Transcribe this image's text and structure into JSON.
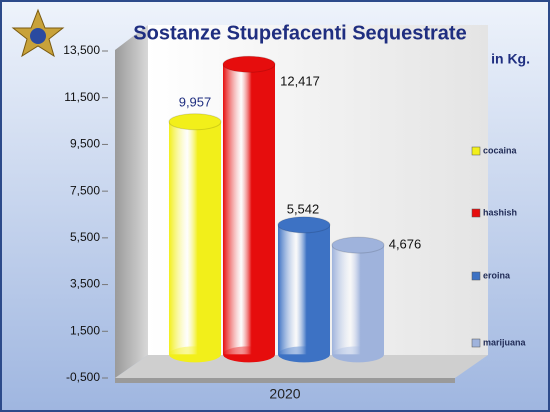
{
  "chart_data": {
    "type": "bar3d",
    "title": "Sostanze   Stupefacenti   Sequestrate",
    "subtitle": "in Kg.",
    "categories": [
      "2020"
    ],
    "series": [
      {
        "name": "cocaina",
        "color": "#f2ef1a",
        "values": [
          9957
        ],
        "value_labels": [
          "9,957"
        ]
      },
      {
        "name": "hashish",
        "color": "#e60d0d",
        "values": [
          12417
        ],
        "value_labels": [
          "12,417"
        ]
      },
      {
        "name": "eroina",
        "color": "#3d72c4",
        "values": [
          5542
        ],
        "value_labels": [
          "5,542"
        ]
      },
      {
        "name": "marijuana",
        "color": "#9fb3dc",
        "values": [
          4676
        ],
        "value_labels": [
          "4,676"
        ]
      }
    ],
    "ylim": [
      -500,
      13500
    ],
    "yticks": [
      {
        "value": -500,
        "label": "-0,500"
      },
      {
        "value": 1500,
        "label": "1,500"
      },
      {
        "value": 3500,
        "label": "3,500"
      },
      {
        "value": 5500,
        "label": "5,500"
      },
      {
        "value": 7500,
        "label": "7,500"
      },
      {
        "value": 9500,
        "label": "9,500"
      },
      {
        "value": 11500,
        "label": "11,500"
      },
      {
        "value": 13500,
        "label": "13,500"
      }
    ],
    "legend": "right"
  }
}
